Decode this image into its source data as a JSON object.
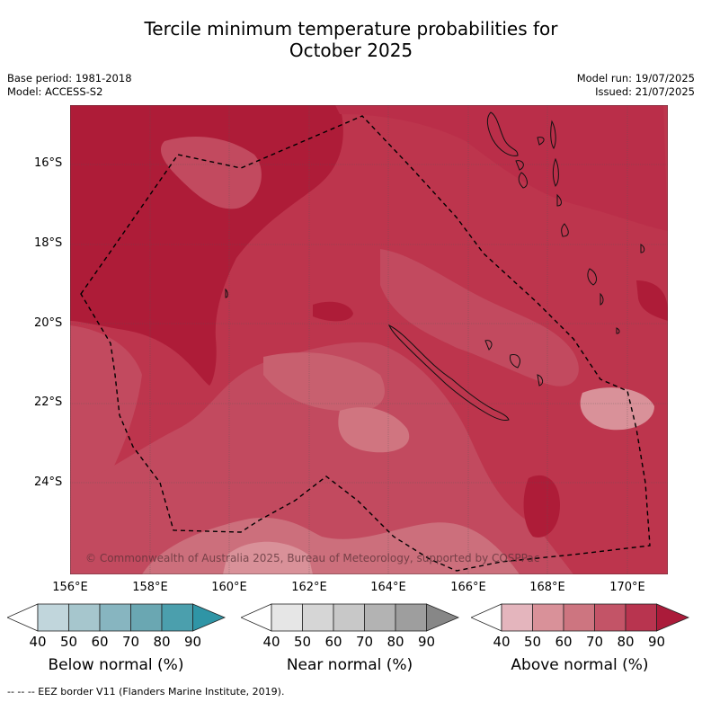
{
  "title_line1": "Tercile minimum temperature probabilities for",
  "title_line2": "October 2025",
  "base_period": "Base period: 1981-2018",
  "model": "Model: ACCESS-S2",
  "model_run": "Model run: 19/07/2025",
  "issued": "Issued: 21/07/2025",
  "lat_labels": [
    "16°S",
    "18°S",
    "20°S",
    "22°S",
    "24°S"
  ],
  "lon_labels": [
    "156°E",
    "158°E",
    "160°E",
    "162°E",
    "164°E",
    "166°E",
    "168°E",
    "170°E"
  ],
  "copyright": "© Commonwealth of Australia 2025, Bureau of Meteorology, supported by COSPPac",
  "colorbars": [
    {
      "title": "Below normal (%)",
      "ticks": [
        "40",
        "50",
        "60",
        "70",
        "80",
        "90"
      ],
      "colors": [
        "#ffffff",
        "#c1d6dc",
        "#a6c6cd",
        "#87b5c0",
        "#6aa7b2",
        "#4b9fad",
        "#2f95a6"
      ]
    },
    {
      "title": "Near normal (%)",
      "ticks": [
        "40",
        "50",
        "60",
        "70",
        "80",
        "90"
      ],
      "colors": [
        "#ffffff",
        "#e6e6e6",
        "#d6d6d6",
        "#c8c8c8",
        "#b3b3b3",
        "#9e9e9e",
        "#878787"
      ]
    },
    {
      "title": "Above normal (%)",
      "ticks": [
        "40",
        "50",
        "60",
        "70",
        "80",
        "90"
      ],
      "colors": [
        "#ffffff",
        "#e4b5bd",
        "#d99199",
        "#cd7580",
        "#c35467",
        "#b8344f",
        "#ab1b3a"
      ]
    }
  ],
  "footer": "-- -- -- EEZ border V11 (Flanders Marine Institute, 2019)."
}
